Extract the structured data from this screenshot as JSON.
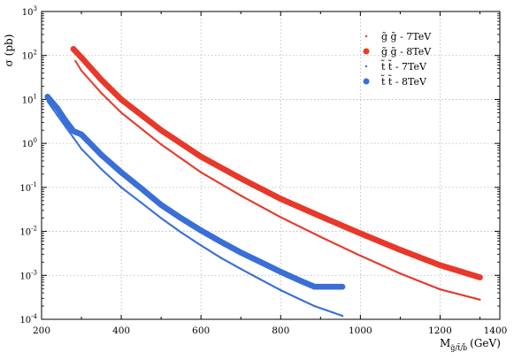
{
  "chart_data": {
    "type": "scatter",
    "title": "",
    "xlabel_main": "M",
    "xlabel_sub": "g̃/t̃/b̃",
    "xlabel_unit": "(GeV)",
    "ylabel": "σ (pb)",
    "xlim": [
      200,
      1350
    ],
    "ylim": [
      0.0001,
      1000
    ],
    "yscale": "log",
    "grid": true,
    "legend_position": "top-right",
    "x_ticks": [
      "200",
      "400",
      "600",
      "800",
      "1000",
      "1200",
      "1400"
    ],
    "y_ticks": [
      {
        "base": "10",
        "exp": "3"
      },
      {
        "base": "10",
        "exp": "2"
      },
      {
        "base": "10",
        "exp": "1"
      },
      {
        "base": "10",
        "exp": "0"
      },
      {
        "base": "10",
        "exp": "-1"
      },
      {
        "base": "10",
        "exp": "-2"
      },
      {
        "base": "10",
        "exp": "-3"
      },
      {
        "base": "10",
        "exp": "-4"
      }
    ],
    "series": [
      {
        "name": "g̃ g̃ - 7TeV",
        "color": "#e8392a",
        "marker": "small-dot",
        "x": [
          285,
          300,
          350,
          400,
          500,
          600,
          700,
          800,
          900,
          1000,
          1100,
          1200,
          1300
        ],
        "y": [
          75,
          45,
          14,
          5.0,
          0.95,
          0.22,
          0.065,
          0.021,
          0.0075,
          0.0028,
          0.0011,
          0.00048,
          0.00028
        ]
      },
      {
        "name": "g̃ g̃ - 8TeV",
        "color": "#e8392a",
        "marker": "large-dot",
        "x": [
          280,
          300,
          350,
          400,
          500,
          600,
          700,
          800,
          900,
          1000,
          1100,
          1200,
          1300
        ],
        "y": [
          140,
          90,
          28,
          10,
          2.0,
          0.5,
          0.16,
          0.055,
          0.022,
          0.009,
          0.0038,
          0.0017,
          0.0009
        ]
      },
      {
        "name": "t̃ t̃ - 7TeV",
        "color": "#3a6fd8",
        "marker": "small-dot",
        "x": [
          215,
          240,
          260,
          280,
          300,
          350,
          400,
          450,
          500,
          550,
          600,
          650,
          700,
          750,
          800,
          850,
          885,
          955
        ],
        "y": [
          9.0,
          4.3,
          2.4,
          1.35,
          0.75,
          0.26,
          0.1,
          0.045,
          0.02,
          0.0095,
          0.0048,
          0.0025,
          0.0014,
          0.0008,
          0.00046,
          0.00028,
          0.0002,
          0.00012
        ]
      },
      {
        "name": "t̃ t̃ - 8TeV",
        "color": "#3a6fd8",
        "marker": "large-dot",
        "x": [
          215,
          240,
          260,
          280,
          300,
          350,
          400,
          450,
          500,
          550,
          600,
          650,
          700,
          750,
          800,
          850,
          885,
          955
        ],
        "y": [
          11.5,
          6.2,
          3.3,
          1.9,
          1.6,
          0.55,
          0.22,
          0.095,
          0.04,
          0.02,
          0.0105,
          0.0058,
          0.0033,
          0.002,
          0.0012,
          0.00075,
          0.00055,
          0.00055
        ]
      }
    ]
  }
}
